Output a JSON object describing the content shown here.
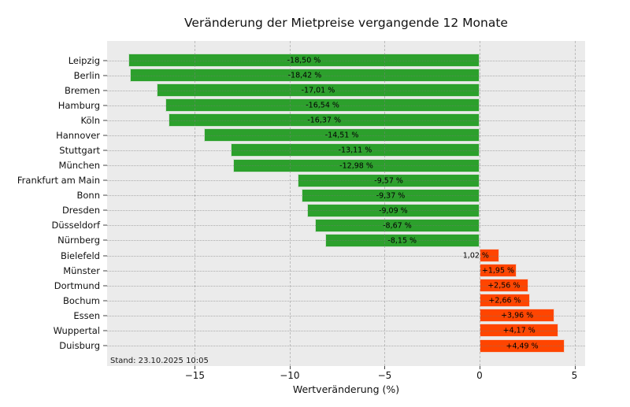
{
  "title": "Veränderung der Mietpreise vergangende 12 Monate",
  "chart_data": {
    "type": "bar",
    "orientation": "horizontal",
    "title": "Veränderung der Mietpreise vergangende 12 Monate",
    "xlabel": "Wertveränderung (%)",
    "categories": [
      "Leipzig",
      "Berlin",
      "Bremen",
      "Hamburg",
      "Köln",
      "Hannover",
      "Stuttgart",
      "München",
      "Frankfurt am Main",
      "Bonn",
      "Dresden",
      "Düsseldorf",
      "Nürnberg",
      "Bielefeld",
      "Münster",
      "Dortmund",
      "Bochum",
      "Essen",
      "Wuppertal",
      "Duisburg"
    ],
    "values": [
      -18.5,
      -18.42,
      -17.01,
      -16.54,
      -16.37,
      -14.51,
      -13.11,
      -12.98,
      -9.57,
      -9.37,
      -9.09,
      -8.67,
      -8.15,
      1.02,
      1.95,
      2.56,
      2.66,
      3.96,
      4.17,
      4.49
    ],
    "bar_labels": [
      "-18,50 %",
      "-18,42 %",
      "-17,01 %",
      "-16,54 %",
      "-16,37 %",
      "-14,51 %",
      "-13,11 %",
      "-12,98 %",
      "-9,57 %",
      "-9,37 %",
      "-9,09 %",
      "-8,67 %",
      "-8,15 %",
      "1,02 %",
      "+1,95 %",
      "+2,56 %",
      "+2,66 %",
      "+3,96 %",
      "+4,17 %",
      "+4,49 %"
    ],
    "xlim": [
      -19.62,
      5.56
    ],
    "xticks": [
      -15,
      -10,
      -5,
      0,
      5
    ],
    "xtick_labels": [
      "−15",
      "−10",
      "−5",
      "0",
      "5"
    ],
    "grid": true,
    "legend": null,
    "annotation": "Stand: 23.10.2025 10:05",
    "colors": {
      "negative_bar": "#2ca02c",
      "positive_bar": "#ff4500",
      "plot_background": "#ebebeb",
      "figure_background": "#ffffff",
      "text": "#111111"
    }
  }
}
